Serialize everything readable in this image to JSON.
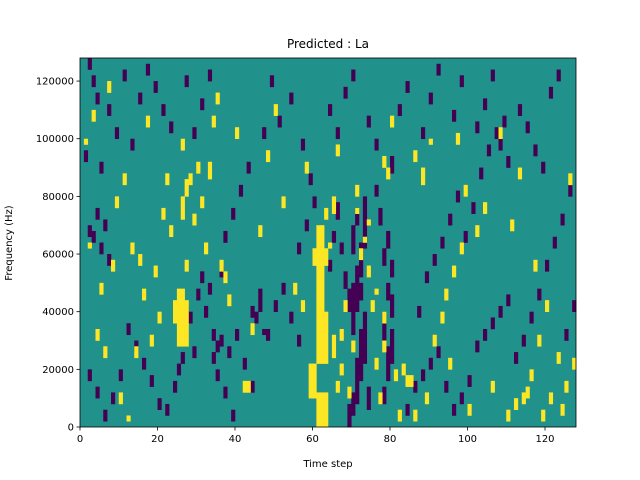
{
  "chart_data": {
    "type": "heatmap",
    "title": "Predicted : La",
    "xlabel": "Time step",
    "ylabel": "Frequency (Hz)",
    "xlim": [
      0,
      128
    ],
    "ylim": [
      0,
      128000
    ],
    "xticks": [
      "0",
      "20",
      "40",
      "60",
      "80",
      "100",
      "120"
    ],
    "yticks": [
      "0",
      "20000",
      "40000",
      "60000",
      "80000",
      "100000",
      "120000"
    ],
    "n_time_steps": 128,
    "n_freq_bins": 128,
    "grid": false,
    "legend": "none",
    "colormap": "viridis",
    "levels": [
      -1,
      0,
      1
    ],
    "colors": {
      "low": "#440154",
      "mid": "#21918c",
      "high": "#fde725"
    },
    "background_level": 0,
    "cells_high": [
      [
        61,
        0,
        4
      ],
      [
        62,
        0,
        4
      ],
      [
        63,
        0,
        4
      ],
      [
        61,
        4,
        12
      ],
      [
        62,
        4,
        12
      ],
      [
        63,
        4,
        12
      ],
      [
        59,
        10,
        22
      ],
      [
        60,
        10,
        22
      ],
      [
        61,
        22,
        40
      ],
      [
        62,
        22,
        40
      ],
      [
        63,
        22,
        40
      ],
      [
        61,
        40,
        70
      ],
      [
        62,
        40,
        70
      ],
      [
        60,
        56,
        62
      ],
      [
        63,
        56,
        62
      ],
      [
        25,
        28,
        48
      ],
      [
        26,
        28,
        48
      ],
      [
        27,
        28,
        44
      ],
      [
        24,
        36,
        44
      ],
      [
        26,
        96,
        100
      ],
      [
        27,
        54,
        58
      ],
      [
        26,
        72,
        80
      ],
      [
        27,
        80,
        86
      ],
      [
        28,
        84,
        88
      ],
      [
        30,
        88,
        92
      ],
      [
        33,
        86,
        92
      ],
      [
        32,
        60,
        64
      ],
      [
        36,
        54,
        58
      ],
      [
        37,
        50,
        54
      ],
      [
        42,
        12,
        16
      ],
      [
        43,
        12,
        16
      ],
      [
        65,
        28,
        32
      ],
      [
        67,
        30,
        34
      ],
      [
        65,
        24,
        28
      ],
      [
        64,
        62,
        64
      ],
      [
        66,
        94,
        98
      ],
      [
        65,
        74,
        80
      ],
      [
        63,
        72,
        76
      ],
      [
        61,
        58,
        62
      ],
      [
        84,
        14,
        18
      ],
      [
        85,
        14,
        18
      ],
      [
        81,
        16,
        20
      ],
      [
        83,
        18,
        22
      ],
      [
        76,
        20,
        24
      ],
      [
        78,
        26,
        30
      ],
      [
        78,
        36,
        40
      ],
      [
        75,
        40,
        44
      ],
      [
        76,
        46,
        48
      ],
      [
        74,
        52,
        56
      ],
      [
        72,
        58,
        62
      ],
      [
        73,
        64,
        66
      ],
      [
        74,
        70,
        72
      ],
      [
        71,
        74,
        76
      ],
      [
        71,
        80,
        84
      ],
      [
        78,
        90,
        94
      ],
      [
        79,
        86,
        90
      ],
      [
        80,
        104,
        108
      ],
      [
        86,
        92,
        96
      ],
      [
        88,
        84,
        90
      ],
      [
        90,
        98,
        100
      ],
      [
        94,
        44,
        48
      ],
      [
        96,
        52,
        56
      ],
      [
        98,
        60,
        64
      ],
      [
        102,
        66,
        70
      ],
      [
        104,
        74,
        78
      ],
      [
        99,
        80,
        84
      ],
      [
        97,
        98,
        102
      ],
      [
        108,
        100,
        104
      ],
      [
        112,
        6,
        10
      ],
      [
        114,
        8,
        12
      ],
      [
        113,
        86,
        90
      ],
      [
        118,
        28,
        32
      ],
      [
        120,
        40,
        44
      ],
      [
        123,
        22,
        26
      ],
      [
        126,
        84,
        88
      ],
      [
        111,
        68,
        72
      ],
      [
        115,
        10,
        14
      ],
      [
        117,
        54,
        58
      ],
      [
        124,
        4,
        8
      ],
      [
        127,
        20,
        24
      ],
      [
        93,
        36,
        40
      ],
      [
        10,
        8,
        12
      ],
      [
        12,
        2,
        4
      ],
      [
        15,
        56,
        60
      ],
      [
        16,
        44,
        48
      ],
      [
        18,
        28,
        32
      ],
      [
        20,
        36,
        40
      ],
      [
        21,
        72,
        76
      ],
      [
        22,
        84,
        88
      ],
      [
        23,
        66,
        70
      ],
      [
        24,
        38,
        42
      ],
      [
        19,
        52,
        56
      ],
      [
        14,
        24,
        28
      ],
      [
        11,
        84,
        88
      ],
      [
        17,
        104,
        108
      ],
      [
        1,
        98,
        100
      ],
      [
        3,
        106,
        110
      ],
      [
        7,
        116,
        120
      ],
      [
        9,
        76,
        80
      ],
      [
        5,
        46,
        50
      ],
      [
        8,
        54,
        58
      ],
      [
        13,
        60,
        64
      ],
      [
        4,
        30,
        34
      ],
      [
        6,
        24,
        28
      ],
      [
        2,
        62,
        64
      ],
      [
        29,
        70,
        74
      ],
      [
        31,
        76,
        80
      ],
      [
        34,
        104,
        108
      ],
      [
        35,
        112,
        116
      ],
      [
        38,
        42,
        46
      ],
      [
        40,
        100,
        104
      ],
      [
        44,
        32,
        36
      ],
      [
        46,
        66,
        70
      ],
      [
        48,
        92,
        96
      ],
      [
        50,
        108,
        112
      ],
      [
        52,
        76,
        80
      ],
      [
        55,
        46,
        50
      ],
      [
        57,
        40,
        44
      ],
      [
        58,
        88,
        92
      ],
      [
        66,
        12,
        16
      ],
      [
        67,
        18,
        22
      ],
      [
        68,
        40,
        44
      ],
      [
        69,
        10,
        14
      ],
      [
        70,
        26,
        30
      ],
      [
        77,
        8,
        12
      ],
      [
        82,
        2,
        6
      ],
      [
        86,
        2,
        6
      ],
      [
        89,
        8,
        12
      ],
      [
        91,
        28,
        32
      ],
      [
        95,
        20,
        24
      ],
      [
        100,
        4,
        8
      ],
      [
        106,
        12,
        16
      ],
      [
        110,
        2,
        6
      ],
      [
        116,
        16,
        20
      ],
      [
        119,
        2,
        6
      ],
      [
        121,
        8,
        12
      ],
      [
        125,
        12,
        16
      ]
    ],
    "cells_low": [
      [
        69,
        0,
        8
      ],
      [
        70,
        4,
        12
      ],
      [
        71,
        8,
        24
      ],
      [
        72,
        16,
        34
      ],
      [
        73,
        22,
        40
      ],
      [
        70,
        32,
        50
      ],
      [
        71,
        40,
        56
      ],
      [
        72,
        52,
        64
      ],
      [
        70,
        60,
        70
      ],
      [
        73,
        62,
        80
      ],
      [
        71,
        70,
        76
      ],
      [
        74,
        6,
        14
      ],
      [
        69,
        40,
        48
      ],
      [
        72,
        44,
        50
      ],
      [
        78,
        8,
        14
      ],
      [
        79,
        16,
        28
      ],
      [
        80,
        22,
        34
      ],
      [
        78,
        30,
        40
      ],
      [
        80,
        38,
        46
      ],
      [
        79,
        44,
        50
      ],
      [
        80,
        52,
        58
      ],
      [
        78,
        56,
        62
      ],
      [
        79,
        62,
        68
      ],
      [
        77,
        70,
        76
      ],
      [
        76,
        80,
        84
      ],
      [
        80,
        88,
        94
      ],
      [
        64,
        54,
        58
      ],
      [
        65,
        64,
        68
      ],
      [
        66,
        72,
        78
      ],
      [
        67,
        60,
        64
      ],
      [
        68,
        48,
        54
      ],
      [
        45,
        36,
        40
      ],
      [
        46,
        40,
        44
      ],
      [
        47,
        32,
        34
      ],
      [
        46,
        44,
        48
      ],
      [
        44,
        38,
        42
      ],
      [
        38,
        24,
        28
      ],
      [
        40,
        30,
        34
      ],
      [
        36,
        28,
        32
      ],
      [
        34,
        22,
        26
      ],
      [
        35,
        16,
        20
      ],
      [
        37,
        10,
        14
      ],
      [
        39,
        2,
        6
      ],
      [
        42,
        20,
        24
      ],
      [
        44,
        12,
        16
      ],
      [
        48,
        30,
        34
      ],
      [
        50,
        40,
        44
      ],
      [
        52,
        46,
        50
      ],
      [
        54,
        36,
        40
      ],
      [
        56,
        28,
        32
      ],
      [
        25,
        18,
        22
      ],
      [
        26,
        22,
        26
      ],
      [
        22,
        4,
        8
      ],
      [
        24,
        12,
        16
      ],
      [
        20,
        6,
        10
      ],
      [
        18,
        14,
        18
      ],
      [
        16,
        20,
        24
      ],
      [
        14,
        26,
        30
      ],
      [
        12,
        32,
        36
      ],
      [
        10,
        16,
        20
      ],
      [
        8,
        8,
        12
      ],
      [
        6,
        2,
        6
      ],
      [
        4,
        10,
        14
      ],
      [
        2,
        16,
        20
      ],
      [
        3,
        64,
        68
      ],
      [
        5,
        60,
        64
      ],
      [
        2,
        66,
        70
      ],
      [
        4,
        72,
        76
      ],
      [
        6,
        68,
        72
      ],
      [
        7,
        56,
        60
      ],
      [
        1,
        92,
        96
      ],
      [
        3,
        118,
        122
      ],
      [
        4,
        112,
        116
      ],
      [
        2,
        124,
        128
      ],
      [
        30,
        44,
        48
      ],
      [
        31,
        50,
        54
      ],
      [
        32,
        38,
        42
      ],
      [
        33,
        46,
        50
      ],
      [
        34,
        30,
        34
      ],
      [
        35,
        26,
        30
      ],
      [
        36,
        52,
        56
      ],
      [
        28,
        36,
        40
      ],
      [
        29,
        24,
        28
      ],
      [
        27,
        38,
        42
      ],
      [
        84,
        4,
        8
      ],
      [
        86,
        12,
        16
      ],
      [
        88,
        16,
        20
      ],
      [
        90,
        20,
        24
      ],
      [
        92,
        24,
        28
      ],
      [
        94,
        12,
        16
      ],
      [
        96,
        4,
        8
      ],
      [
        98,
        8,
        12
      ],
      [
        100,
        14,
        18
      ],
      [
        102,
        26,
        30
      ],
      [
        104,
        30,
        34
      ],
      [
        106,
        34,
        38
      ],
      [
        108,
        38,
        42
      ],
      [
        110,
        42,
        46
      ],
      [
        87,
        38,
        42
      ],
      [
        89,
        50,
        54
      ],
      [
        91,
        56,
        60
      ],
      [
        93,
        62,
        66
      ],
      [
        95,
        70,
        74
      ],
      [
        97,
        78,
        82
      ],
      [
        99,
        64,
        68
      ],
      [
        101,
        74,
        78
      ],
      [
        103,
        86,
        90
      ],
      [
        105,
        94,
        98
      ],
      [
        107,
        100,
        104
      ],
      [
        109,
        104,
        108
      ],
      [
        112,
        22,
        26
      ],
      [
        114,
        28,
        32
      ],
      [
        116,
        36,
        40
      ],
      [
        118,
        44,
        48
      ],
      [
        120,
        54,
        58
      ],
      [
        122,
        62,
        66
      ],
      [
        124,
        70,
        74
      ],
      [
        126,
        80,
        84
      ],
      [
        119,
        88,
        92
      ],
      [
        117,
        94,
        98
      ],
      [
        115,
        102,
        106
      ],
      [
        113,
        108,
        112
      ],
      [
        121,
        114,
        118
      ],
      [
        123,
        120,
        124
      ],
      [
        125,
        30,
        34
      ],
      [
        127,
        40,
        44
      ],
      [
        54,
        112,
        116
      ],
      [
        57,
        96,
        100
      ],
      [
        59,
        84,
        88
      ],
      [
        60,
        76,
        80
      ],
      [
        58,
        68,
        72
      ],
      [
        56,
        60,
        64
      ],
      [
        51,
        104,
        108
      ],
      [
        49,
        118,
        122
      ],
      [
        47,
        100,
        104
      ],
      [
        43,
        88,
        92
      ],
      [
        41,
        80,
        84
      ],
      [
        39,
        72,
        76
      ],
      [
        37,
        64,
        68
      ],
      [
        33,
        120,
        124
      ],
      [
        31,
        110,
        114
      ],
      [
        29,
        100,
        104
      ],
      [
        27,
        118,
        122
      ],
      [
        23,
        102,
        106
      ],
      [
        21,
        108,
        112
      ],
      [
        19,
        116,
        120
      ],
      [
        17,
        122,
        126
      ],
      [
        15,
        112,
        116
      ],
      [
        13,
        96,
        100
      ],
      [
        11,
        120,
        124
      ],
      [
        9,
        100,
        104
      ],
      [
        7,
        108,
        112
      ],
      [
        5,
        88,
        92
      ],
      [
        64,
        108,
        112
      ],
      [
        66,
        100,
        104
      ],
      [
        68,
        114,
        118
      ],
      [
        70,
        120,
        124
      ],
      [
        74,
        104,
        108
      ],
      [
        76,
        96,
        100
      ],
      [
        82,
        108,
        112
      ],
      [
        84,
        116,
        120
      ],
      [
        88,
        100,
        104
      ],
      [
        90,
        112,
        116
      ],
      [
        92,
        122,
        126
      ],
      [
        96,
        106,
        110
      ],
      [
        98,
        118,
        122
      ],
      [
        102,
        102,
        106
      ],
      [
        104,
        110,
        114
      ],
      [
        106,
        120,
        124
      ],
      [
        108,
        96,
        100
      ],
      [
        110,
        90,
        94
      ]
    ]
  }
}
